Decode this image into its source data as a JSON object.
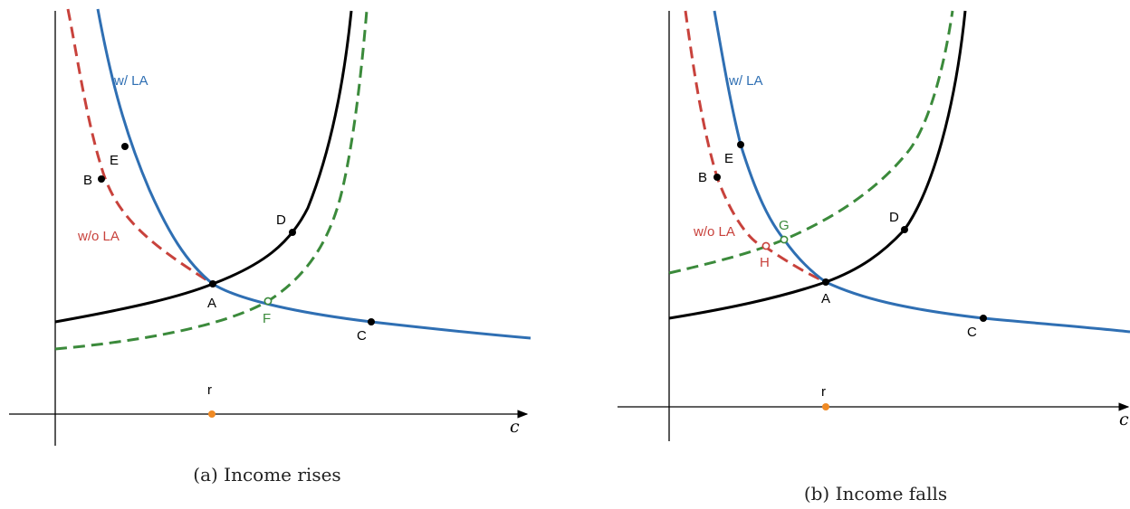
{
  "colors": {
    "axis": "#000000",
    "black_curve": "#000000",
    "blue_curve": "#2f6fb3",
    "red_dashed": "#c8423c",
    "green_dashed": "#3b8a3b",
    "orange_point": "#f08a24"
  },
  "panels": [
    {
      "caption": "(a) Income rises",
      "x_axis_label": "c",
      "marker_label": "r",
      "curve_labels": {
        "with_la": "w/ LA",
        "without_la": "w/o LA"
      },
      "points": [
        {
          "id": "A",
          "label": "A",
          "style": "solid"
        },
        {
          "id": "B",
          "label": "B",
          "style": "solid"
        },
        {
          "id": "C",
          "label": "C",
          "style": "solid"
        },
        {
          "id": "D",
          "label": "D",
          "style": "solid"
        },
        {
          "id": "E",
          "label": "E",
          "style": "solid"
        },
        {
          "id": "F",
          "label": "F",
          "style": "open-green"
        }
      ]
    },
    {
      "caption": "(b) Income falls",
      "x_axis_label": "c",
      "marker_label": "r",
      "curve_labels": {
        "with_la": "w/ LA",
        "without_la": "w/o LA"
      },
      "points": [
        {
          "id": "A",
          "label": "A",
          "style": "solid"
        },
        {
          "id": "B",
          "label": "B",
          "style": "solid"
        },
        {
          "id": "C",
          "label": "C",
          "style": "solid"
        },
        {
          "id": "D",
          "label": "D",
          "style": "solid"
        },
        {
          "id": "E",
          "label": "E",
          "style": "solid"
        },
        {
          "id": "G",
          "label": "G",
          "style": "open-green"
        },
        {
          "id": "H",
          "label": "H",
          "style": "open-red"
        }
      ]
    }
  ]
}
